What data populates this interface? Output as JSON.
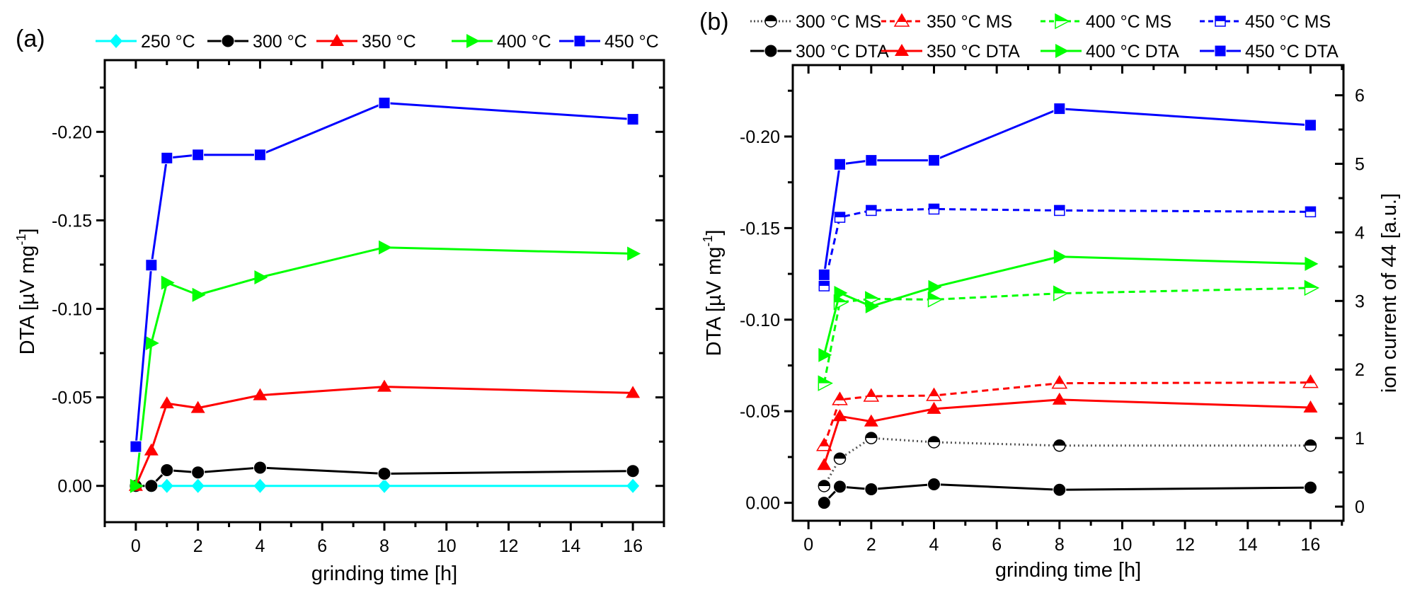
{
  "chart_data": [
    {
      "panel": "(a)",
      "type": "line",
      "title": "",
      "xlabel": "grinding time [h]",
      "ylabel": "DTA [µV mg⁻¹]",
      "ylabel_base": "DTA [µV mg",
      "ylabel_sup": "-1",
      "ylabel_end": "]",
      "xlim": [
        -1,
        17
      ],
      "ylim": [
        0.0205,
        -0.2405
      ],
      "x_ticks": [
        0,
        2,
        4,
        6,
        8,
        10,
        12,
        14,
        16
      ],
      "x_tick_labels": [
        "0",
        "2",
        "4",
        "6",
        "8",
        "10",
        "12",
        "14",
        "16"
      ],
      "y_ticks": [
        0.0,
        -0.05,
        -0.1,
        -0.15,
        -0.2
      ],
      "y_tick_labels": [
        "0.00",
        "-0.05",
        "-0.10",
        "-0.15",
        "-0.20"
      ],
      "grid": false,
      "legend_position": "top",
      "series": [
        {
          "name": "250 °C",
          "color": "#00ffff",
          "marker": "diamond",
          "line": "solid",
          "x": [
            0,
            0.5,
            1,
            2,
            4,
            8,
            16
          ],
          "y": [
            0.0,
            0.0,
            0.0,
            0.0,
            0.0,
            0.0,
            0.0
          ]
        },
        {
          "name": "300 °C",
          "color": "#000000",
          "marker": "circle",
          "line": "solid",
          "x": [
            0,
            0.5,
            1,
            2,
            4,
            8,
            16
          ],
          "y": [
            0.0,
            0.0,
            -0.0089,
            -0.0076,
            -0.0103,
            -0.0069,
            -0.0084
          ]
        },
        {
          "name": "350 °C",
          "color": "#ff0000",
          "marker": "triangle-up",
          "line": "solid",
          "x": [
            0,
            0.5,
            1,
            2,
            4,
            8,
            16
          ],
          "y": [
            0.0,
            -0.02,
            -0.0466,
            -0.044,
            -0.0512,
            -0.056,
            -0.0525
          ]
        },
        {
          "name": "400 °C",
          "color": "#00ff00",
          "marker": "triangle-right",
          "line": "solid",
          "x": [
            0,
            0.5,
            1,
            2,
            4,
            8,
            16
          ],
          "y": [
            0.0,
            -0.0806,
            -0.1148,
            -0.1079,
            -0.1178,
            -0.1347,
            -0.1312
          ]
        },
        {
          "name": "450 °C",
          "color": "#0000ff",
          "marker": "square",
          "line": "solid",
          "x": [
            0,
            0.5,
            1,
            2,
            4,
            8,
            16
          ],
          "y": [
            -0.0222,
            -0.1247,
            -0.1852,
            -0.187,
            -0.187,
            -0.2163,
            -0.2071
          ]
        }
      ]
    },
    {
      "panel": "(b)",
      "type": "line",
      "title": "",
      "xlabel": "grinding time [h]",
      "ylabel": "DTA [µV mg⁻¹]",
      "ylabel_base": "DTA [µV mg",
      "ylabel_sup": "-1",
      "ylabel_end": "]",
      "y2label": "ion current of 44 [a.u.]",
      "xlim": [
        -0.5,
        17.05
      ],
      "ylim": [
        0.0098,
        -0.239
      ],
      "y2lim": [
        -0.206,
        6.44
      ],
      "x_ticks": [
        0,
        2,
        4,
        6,
        8,
        10,
        12,
        14,
        16
      ],
      "x_tick_labels": [
        "0",
        "2",
        "4",
        "6",
        "8",
        "10",
        "12",
        "14",
        "16"
      ],
      "y_ticks": [
        0.0,
        -0.05,
        -0.1,
        -0.15,
        -0.2
      ],
      "y_tick_labels": [
        "0.00",
        "-0.05",
        "-0.10",
        "-0.15",
        "-0.20"
      ],
      "y2_ticks": [
        0,
        1,
        2,
        3,
        4,
        5,
        6
      ],
      "y2_tick_labels": [
        "0",
        "1",
        "2",
        "3",
        "4",
        "5",
        "6"
      ],
      "grid": false,
      "legend_position": "top",
      "series": [
        {
          "name": "300 °C MS",
          "axis": "right",
          "color": "#555555",
          "marker_color": "#000000",
          "marker": "circle-half",
          "line": "dotted",
          "x": [
            0.5,
            1,
            2,
            4,
            8,
            16
          ],
          "y": [
            0.3,
            0.7,
            1.0,
            0.94,
            0.89,
            0.89
          ]
        },
        {
          "name": "350 °C MS",
          "axis": "right",
          "color": "#ff0000",
          "marker": "triangle-up-half",
          "line": "dashed",
          "x": [
            0.5,
            1,
            2,
            4,
            8,
            16
          ],
          "y": [
            0.89,
            1.56,
            1.61,
            1.62,
            1.8,
            1.81
          ]
        },
        {
          "name": "400 °C MS",
          "axis": "right",
          "color": "#00ff00",
          "marker": "triangle-right-half",
          "line": "dashed",
          "x": [
            0.5,
            1,
            2,
            4,
            8,
            16
          ],
          "y": [
            1.8,
            2.98,
            3.03,
            3.02,
            3.11,
            3.19
          ]
        },
        {
          "name": "450 °C MS",
          "axis": "right",
          "color": "#0000ff",
          "marker": "square-half",
          "line": "dashed",
          "x": [
            0.5,
            1,
            2,
            4,
            8,
            16
          ],
          "y": [
            3.22,
            4.22,
            4.32,
            4.34,
            4.32,
            4.3
          ]
        },
        {
          "name": "300 °C DTA",
          "axis": "left",
          "color": "#000000",
          "marker": "circle",
          "line": "solid",
          "x": [
            0.5,
            1,
            2,
            4,
            8,
            16
          ],
          "y": [
            0.0,
            -0.0088,
            -0.0074,
            -0.0101,
            -0.0071,
            -0.0083
          ]
        },
        {
          "name": "350 °C DTA",
          "axis": "left",
          "color": "#ff0000",
          "marker": "triangle-up",
          "line": "solid",
          "x": [
            0.5,
            1,
            2,
            4,
            8,
            16
          ],
          "y": [
            -0.0206,
            -0.0473,
            -0.0444,
            -0.0513,
            -0.0563,
            -0.052
          ]
        },
        {
          "name": "400 °C DTA",
          "axis": "left",
          "color": "#00ff00",
          "marker": "triangle-right",
          "line": "solid",
          "x": [
            0.5,
            1,
            2,
            4,
            8,
            16
          ],
          "y": [
            -0.0807,
            -0.1146,
            -0.1073,
            -0.1178,
            -0.1344,
            -0.1305
          ]
        },
        {
          "name": "450 °C  DTA",
          "axis": "left",
          "color": "#0000ff",
          "marker": "square",
          "line": "solid",
          "x": [
            0.5,
            1,
            2,
            4,
            8,
            16
          ],
          "y": [
            -0.1245,
            -0.1848,
            -0.187,
            -0.187,
            -0.2152,
            -0.2062
          ]
        }
      ]
    }
  ]
}
